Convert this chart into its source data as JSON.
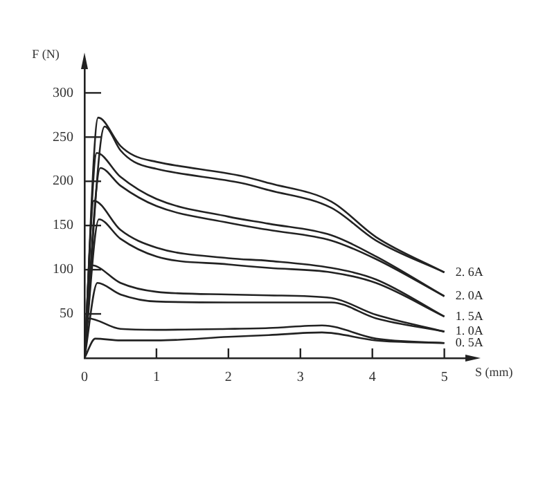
{
  "chart_data": {
    "type": "line",
    "xlabel": "S (mm)",
    "ylabel": "F (N)",
    "xlim": [
      0,
      5.35
    ],
    "ylim": [
      0,
      330
    ],
    "xticks": [
      0,
      1,
      2,
      3,
      4,
      5
    ],
    "yticks": [
      {
        "value": 0,
        "label": null
      },
      50,
      100,
      150,
      200,
      250,
      300
    ],
    "grid": false,
    "legend": false,
    "marker": "none",
    "line_style": "solid",
    "series": [
      {
        "name": "2. 6A",
        "color": "#222222",
        "x": [
          0,
          0.19,
          0.5,
          0.69,
          1.0,
          2.18,
          2.56,
          3.43,
          4.05,
          5.0
        ],
        "values": [
          0,
          272,
          240,
          229,
          222,
          206,
          198,
          177,
          137,
          97
        ]
      },
      {
        "color": "#222222",
        "x": [
          0,
          0.28,
          0.5,
          0.69,
          1.0,
          2.18,
          2.56,
          3.43,
          4.05,
          5.0
        ],
        "values": [
          0,
          262,
          235,
          222,
          214,
          198,
          190,
          170,
          133,
          97
        ]
      },
      {
        "name": "2. 0A",
        "color": "#222222",
        "x": [
          0,
          0.17,
          0.5,
          1.0,
          2.0,
          2.56,
          3.43,
          4.05,
          5.0
        ],
        "values": [
          0,
          232,
          205,
          180,
          160,
          152,
          139,
          115,
          70
        ]
      },
      {
        "color": "#222222",
        "x": [
          0,
          0.22,
          0.5,
          1.0,
          2.0,
          2.56,
          3.43,
          4.05,
          5.0
        ],
        "values": [
          0,
          215,
          195,
          172,
          153,
          145,
          133,
          112,
          70
        ]
      },
      {
        "name": "1. 5A",
        "color": "#222222",
        "x": [
          0,
          0.13,
          0.5,
          1.0,
          2.0,
          2.56,
          3.43,
          4.05,
          5.0
        ],
        "values": [
          0,
          178,
          145,
          125,
          113,
          110,
          102,
          89,
          47
        ]
      },
      {
        "color": "#222222",
        "x": [
          0,
          0.2,
          0.5,
          1.0,
          2.0,
          2.56,
          3.43,
          4.05,
          5.0
        ],
        "values": [
          0,
          157,
          135,
          115,
          106,
          102,
          97,
          85,
          47
        ]
      },
      {
        "name": "1. 0A",
        "color": "#222222",
        "x": [
          0,
          0.1,
          0.5,
          1.0,
          2.0,
          2.56,
          3.43,
          4.05,
          5.0
        ],
        "values": [
          0,
          105,
          85,
          75,
          72,
          71,
          68,
          49,
          30
        ]
      },
      {
        "color": "#222222",
        "x": [
          0,
          0.18,
          0.5,
          1.0,
          2.0,
          2.56,
          3.43,
          4.05,
          5.0
        ],
        "values": [
          0,
          85,
          72,
          64,
          63,
          63,
          63,
          45,
          30
        ]
      },
      {
        "name": "0. 5A",
        "color": "#222222",
        "x": [
          0,
          0.05,
          0.5,
          1.0,
          2.0,
          2.56,
          3.3,
          4.05,
          5.0
        ],
        "values": [
          0,
          45,
          33,
          32,
          33,
          34,
          37,
          22,
          17
        ]
      },
      {
        "color": "#222222",
        "x": [
          0,
          0.15,
          0.5,
          1.0,
          2.0,
          2.56,
          3.3,
          4.05,
          5.0
        ],
        "values": [
          0,
          22,
          20,
          20,
          24,
          26,
          29,
          20,
          17
        ]
      }
    ]
  }
}
